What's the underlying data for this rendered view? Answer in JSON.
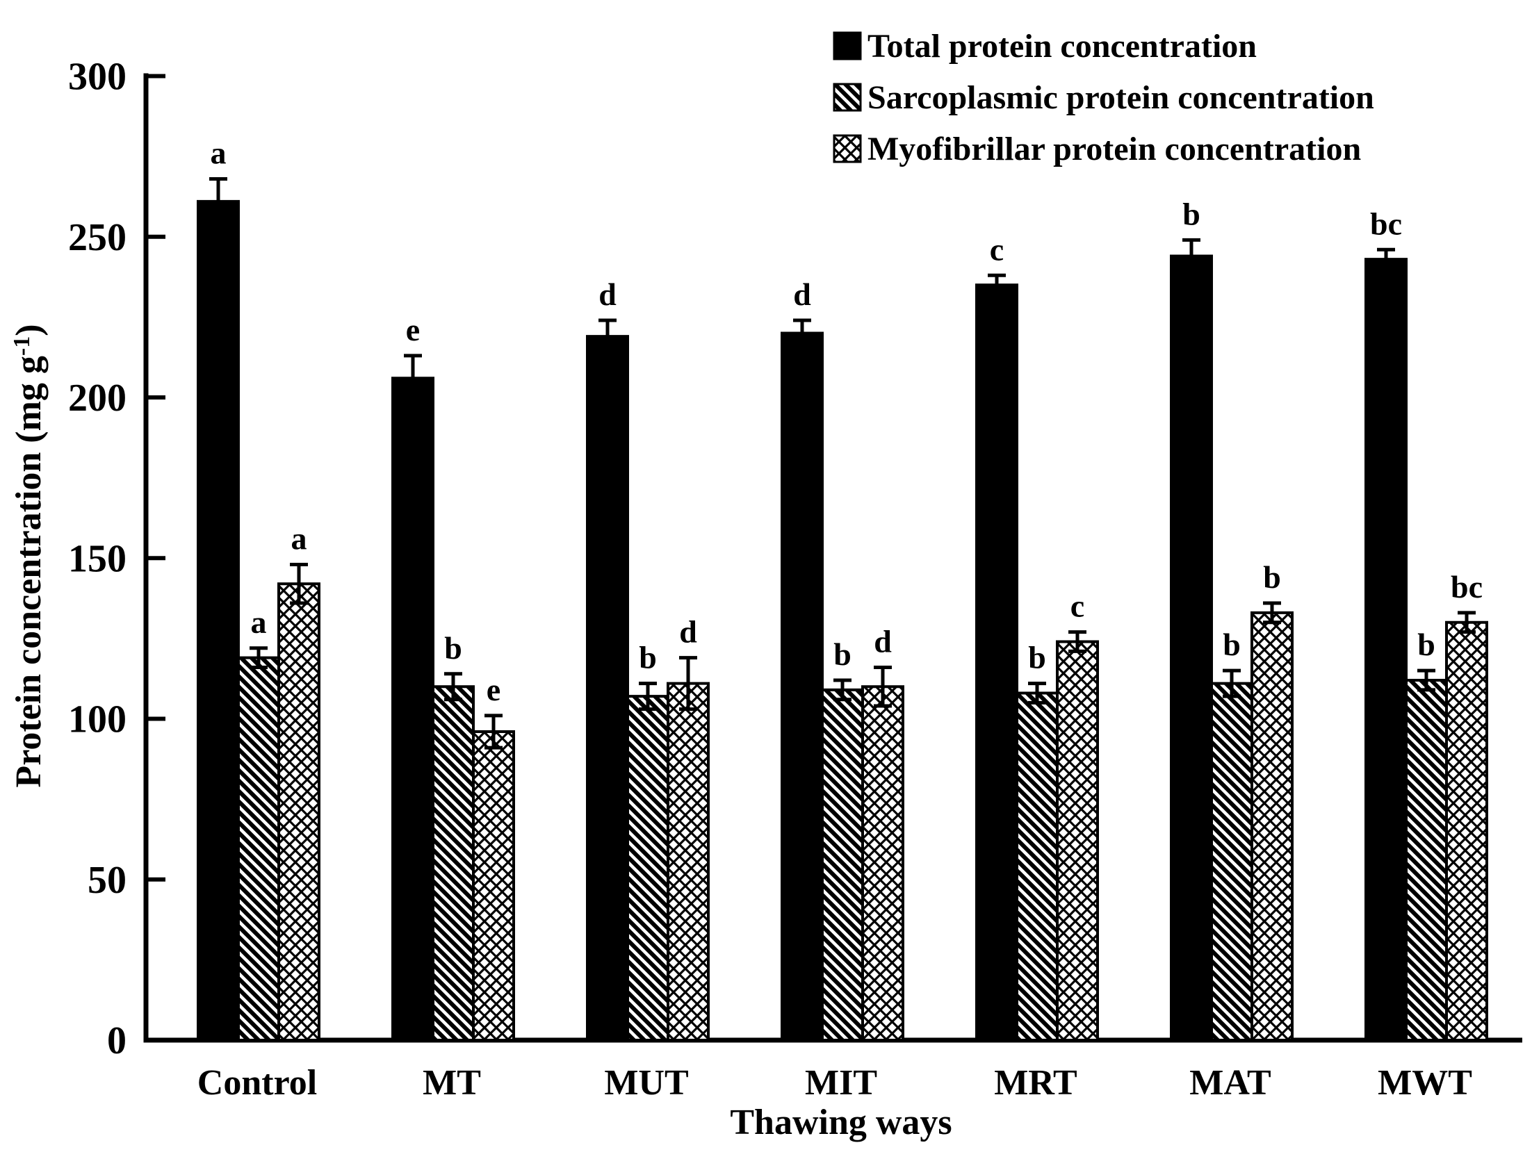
{
  "chart_data": {
    "type": "bar",
    "title": "",
    "xlabel": "Thawing ways",
    "ylabel": {
      "text": "Protein concentration (mg g⁻¹)",
      "base": "Protein concentration (mg g",
      "sup": "-1",
      "close": ")"
    },
    "ylim": [
      0,
      300
    ],
    "ytick_step": 50,
    "yticks": [
      "0",
      "50",
      "100",
      "150",
      "200",
      "250",
      "300"
    ],
    "grid": false,
    "legend_position": "top-right",
    "categories": [
      "Control",
      "MT",
      "MUT",
      "MIT",
      "MRT",
      "MAT",
      "MWT"
    ],
    "series": [
      {
        "name": "Total protein concentration",
        "pattern": "solid-black",
        "values": [
          261,
          206,
          219,
          220,
          235,
          244,
          243
        ],
        "errors": [
          7,
          7,
          5,
          4,
          3,
          5,
          3
        ],
        "letters": [
          "a",
          "e",
          "d",
          "d",
          "c",
          "b",
          "bc"
        ]
      },
      {
        "name": "Sarcoplasmic protein concentration",
        "pattern": "diagonal-hatch",
        "values": [
          119,
          110,
          107,
          109,
          108,
          111,
          112
        ],
        "errors": [
          3,
          4,
          4,
          3,
          3,
          4,
          3
        ],
        "letters": [
          "a",
          "b",
          "b",
          "b",
          "b",
          "b",
          "b"
        ]
      },
      {
        "name": "Myofibrillar protein concentration",
        "pattern": "cross-hatch",
        "values": [
          142,
          96,
          111,
          110,
          124,
          133,
          130
        ],
        "errors": [
          6,
          5,
          8,
          6,
          3,
          3,
          3
        ],
        "letters": [
          "a",
          "e",
          "d",
          "d",
          "c",
          "b",
          "bc"
        ]
      }
    ],
    "colors": {
      "foreground": "#000000",
      "background": "#ffffff"
    }
  }
}
